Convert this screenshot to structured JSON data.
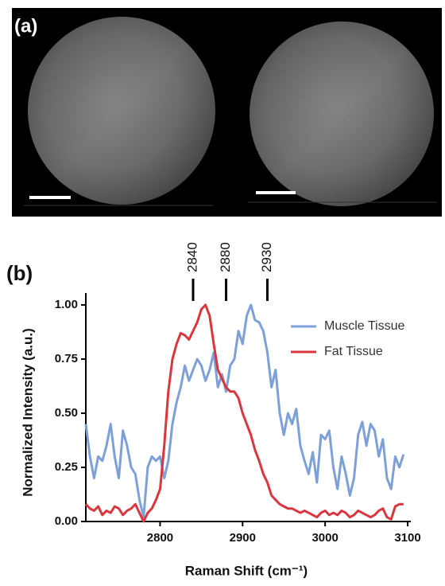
{
  "panel_labels": [
    "(a)",
    "(b)"
  ],
  "chart_data": {
    "type": "line",
    "x_label": "Raman Shift (cm⁻¹)",
    "y_label": "Normalized Intensity (a.u.)",
    "x": [
      2710,
      2715,
      2720,
      2725,
      2730,
      2735,
      2740,
      2745,
      2750,
      2755,
      2760,
      2765,
      2770,
      2775,
      2780,
      2785,
      2790,
      2795,
      2800,
      2805,
      2810,
      2815,
      2820,
      2825,
      2830,
      2835,
      2840,
      2845,
      2850,
      2855,
      2860,
      2865,
      2870,
      2875,
      2880,
      2885,
      2890,
      2895,
      2900,
      2905,
      2910,
      2915,
      2920,
      2925,
      2930,
      2935,
      2940,
      2945,
      2950,
      2955,
      2960,
      2965,
      2970,
      2975,
      2980,
      2985,
      2990,
      2995,
      3000,
      3005,
      3010,
      3015,
      3020,
      3025,
      3030,
      3035,
      3040,
      3045,
      3050,
      3055,
      3060,
      3065,
      3070,
      3075,
      3080,
      3085,
      3090,
      3095
    ],
    "series": [
      {
        "name": "Muscle Tissue",
        "color": "#7ea0d8",
        "values": [
          0.45,
          0.3,
          0.2,
          0.3,
          0.28,
          0.35,
          0.45,
          0.3,
          0.2,
          0.42,
          0.35,
          0.25,
          0.22,
          0.1,
          0.02,
          0.25,
          0.3,
          0.28,
          0.3,
          0.2,
          0.28,
          0.45,
          0.55,
          0.62,
          0.72,
          0.65,
          0.7,
          0.75,
          0.72,
          0.65,
          0.7,
          0.78,
          0.62,
          0.68,
          0.6,
          0.72,
          0.75,
          0.88,
          0.82,
          0.95,
          1.0,
          0.93,
          0.92,
          0.88,
          0.78,
          0.62,
          0.7,
          0.5,
          0.4,
          0.5,
          0.45,
          0.52,
          0.35,
          0.28,
          0.22,
          0.32,
          0.18,
          0.4,
          0.38,
          0.42,
          0.25,
          0.15,
          0.3,
          0.22,
          0.12,
          0.2,
          0.4,
          0.46,
          0.35,
          0.45,
          0.42,
          0.3,
          0.38,
          0.2,
          0.15,
          0.3,
          0.25,
          0.31
        ]
      },
      {
        "name": "Fat Tissue",
        "color": "#d9363e",
        "values": [
          0.08,
          0.06,
          0.05,
          0.07,
          0.03,
          0.05,
          0.04,
          0.07,
          0.06,
          0.03,
          0.05,
          0.06,
          0.08,
          0.04,
          0.0,
          0.04,
          0.06,
          0.1,
          0.15,
          0.35,
          0.6,
          0.75,
          0.82,
          0.87,
          0.86,
          0.84,
          0.88,
          0.92,
          0.98,
          1.0,
          0.95,
          0.82,
          0.7,
          0.66,
          0.62,
          0.6,
          0.6,
          0.57,
          0.5,
          0.45,
          0.4,
          0.33,
          0.28,
          0.22,
          0.18,
          0.12,
          0.1,
          0.08,
          0.07,
          0.06,
          0.06,
          0.05,
          0.04,
          0.05,
          0.04,
          0.03,
          0.02,
          0.04,
          0.05,
          0.03,
          0.04,
          0.03,
          0.05,
          0.04,
          0.02,
          0.03,
          0.05,
          0.04,
          0.03,
          0.02,
          0.03,
          0.05,
          0.06,
          0.02,
          0.01,
          0.07,
          0.08,
          0.08
        ]
      }
    ],
    "annotations": [
      2840,
      2880,
      2930
    ],
    "xlim": [
      2710,
      3100
    ],
    "xticks": [
      2800,
      2900,
      3000,
      3100
    ],
    "ylim": [
      0,
      1
    ],
    "yticks": [
      {
        "value": 0,
        "label": "0.00"
      },
      {
        "value": 0.25,
        "label": "0.25"
      },
      {
        "value": 0.5,
        "label": "0.50"
      },
      {
        "value": 0.75,
        "label": "0.75"
      },
      {
        "value": 1,
        "label": "1.00"
      }
    ]
  }
}
